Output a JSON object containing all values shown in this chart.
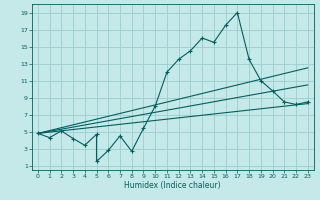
{
  "xlabel": "Humidex (Indice chaleur)",
  "background_color": "#c5e8e8",
  "grid_color": "#9acece",
  "line_color": "#006060",
  "xlim": [
    -0.5,
    23.5
  ],
  "ylim": [
    0.5,
    20
  ],
  "xticks": [
    0,
    1,
    2,
    3,
    4,
    5,
    6,
    7,
    8,
    9,
    10,
    11,
    12,
    13,
    14,
    15,
    16,
    17,
    18,
    19,
    20,
    21,
    22,
    23
  ],
  "yticks": [
    1,
    3,
    5,
    7,
    9,
    11,
    13,
    15,
    17,
    19
  ],
  "main_x": [
    0,
    1,
    2,
    3,
    4,
    5,
    5,
    6,
    7,
    8,
    9,
    10,
    11,
    12,
    13,
    14,
    15,
    16,
    17,
    18,
    19,
    20,
    21,
    22,
    23
  ],
  "main_y": [
    4.8,
    4.3,
    5.1,
    4.2,
    3.4,
    4.7,
    1.5,
    2.8,
    4.5,
    2.7,
    5.4,
    8.0,
    12.0,
    13.5,
    14.5,
    16.0,
    15.5,
    17.5,
    19.0,
    13.5,
    11.0,
    9.8,
    8.5,
    8.2,
    8.5
  ],
  "line1_x": [
    0,
    23
  ],
  "line1_y": [
    4.8,
    12.5
  ],
  "line2_x": [
    0,
    23
  ],
  "line2_y": [
    4.8,
    10.5
  ],
  "line3_x": [
    0,
    23
  ],
  "line3_y": [
    4.8,
    8.3
  ]
}
